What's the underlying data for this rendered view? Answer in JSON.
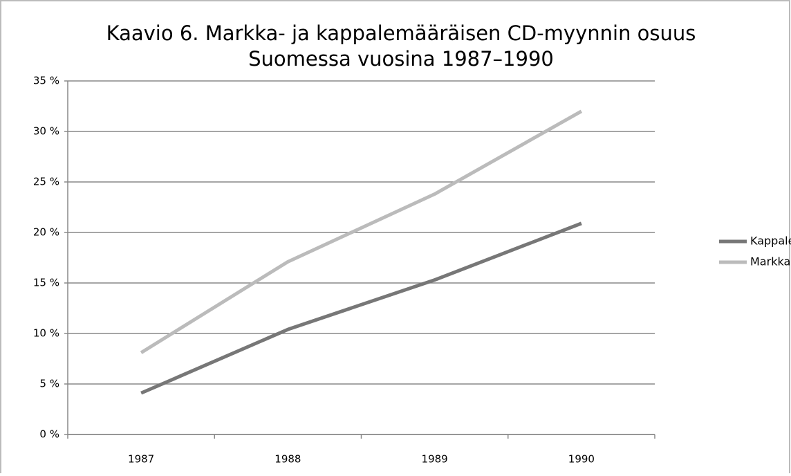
{
  "chart_data": {
    "type": "line",
    "title": [
      "Kaavio 6. Markka- ja kappalemääräisen CD-myynnin osuus",
      "Suomessa vuosina 1987–1990"
    ],
    "categories": [
      "1987",
      "1988",
      "1989",
      "1990"
    ],
    "series": [
      {
        "name": "Kappaletta",
        "color": "#777777",
        "values": [
          4.1,
          10.4,
          15.3,
          20.9
        ]
      },
      {
        "name": "Markkaa",
        "color": "#bbbbbb",
        "values": [
          8.1,
          17.1,
          23.8,
          32.0
        ]
      }
    ],
    "ylim": [
      0,
      35
    ],
    "yticks": [
      {
        "value": 0,
        "label": "0 %"
      },
      {
        "value": 5,
        "label": "5 %"
      },
      {
        "value": 10,
        "label": "10 %"
      },
      {
        "value": 15,
        "label": "15 %"
      },
      {
        "value": 20,
        "label": "20 %"
      },
      {
        "value": 25,
        "label": "25 %"
      },
      {
        "value": 30,
        "label": "30 %"
      },
      {
        "value": 35,
        "label": "35 %"
      }
    ],
    "grid": true,
    "legend": "right"
  }
}
